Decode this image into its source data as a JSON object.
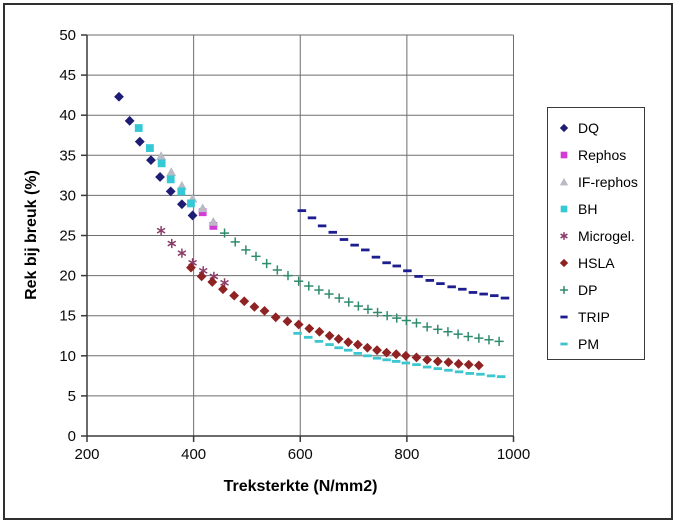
{
  "chart_data": {
    "type": "scatter",
    "title": "",
    "xlabel": "Treksterkte (N/mm2)",
    "ylabel": "Rek bij breuk (%)",
    "xlim": [
      200,
      1000
    ],
    "ylim": [
      0,
      50
    ],
    "x_ticks": [
      200,
      400,
      600,
      800,
      1000
    ],
    "y_ticks": [
      0,
      5,
      10,
      15,
      20,
      25,
      30,
      35,
      40,
      45,
      50
    ],
    "grid": true,
    "grid_color": "#6e6e6e",
    "axis_color": "#3a3a3a",
    "legend_position": "right",
    "series": [
      {
        "name": "DQ",
        "marker": "diamond",
        "color": "#1d1d74",
        "points": [
          [
            260,
            42.3
          ],
          [
            280,
            39.3
          ],
          [
            299,
            36.7
          ],
          [
            320,
            34.4
          ],
          [
            337,
            32.3
          ],
          [
            357,
            30.5
          ],
          [
            378,
            28.9
          ],
          [
            398,
            27.5
          ]
        ]
      },
      {
        "name": "Rephos",
        "marker": "square",
        "color": "#d43bd4",
        "points": [
          [
            417,
            27.9
          ],
          [
            437,
            26.2
          ]
        ]
      },
      {
        "name": "IF-rephos",
        "marker": "triangle",
        "color": "#b9bac4",
        "points": [
          [
            339,
            34.9
          ],
          [
            358,
            32.9
          ],
          [
            378,
            31.2
          ],
          [
            398,
            29.6
          ],
          [
            417,
            28.4
          ],
          [
            437,
            26.7
          ]
        ]
      },
      {
        "name": "BH",
        "marker": "square",
        "color": "#35c9d6",
        "points": [
          [
            297,
            38.4
          ],
          [
            318,
            35.9
          ],
          [
            340,
            34.0
          ],
          [
            357,
            32.0
          ],
          [
            377,
            30.5
          ],
          [
            395,
            29.0
          ]
        ]
      },
      {
        "name": "Microgel.",
        "marker": "asterisk",
        "color": "#8a3d68",
        "points": [
          [
            339,
            25.6
          ],
          [
            359,
            24.0
          ],
          [
            378,
            22.8
          ],
          [
            398,
            21.6
          ],
          [
            418,
            20.6
          ],
          [
            438,
            19.9
          ],
          [
            458,
            19.1
          ]
        ]
      },
      {
        "name": "HSLA",
        "marker": "diamond",
        "color": "#8f2222",
        "points": [
          [
            395,
            21.0
          ],
          [
            415,
            19.9
          ],
          [
            435,
            19.2
          ],
          [
            455,
            18.3
          ],
          [
            476,
            17.5
          ],
          [
            495,
            16.8
          ],
          [
            514,
            16.1
          ],
          [
            533,
            15.6
          ],
          [
            554,
            14.8
          ],
          [
            576,
            14.3
          ],
          [
            597,
            13.9
          ],
          [
            617,
            13.4
          ],
          [
            636,
            13.0
          ],
          [
            655,
            12.5
          ],
          [
            672,
            12.1
          ],
          [
            690,
            11.7
          ],
          [
            708,
            11.4
          ],
          [
            726,
            11.0
          ],
          [
            744,
            10.7
          ],
          [
            762,
            10.4
          ],
          [
            780,
            10.2
          ],
          [
            798,
            10.0
          ],
          [
            818,
            9.8
          ],
          [
            838,
            9.5
          ],
          [
            858,
            9.3
          ],
          [
            878,
            9.2
          ],
          [
            897,
            9.0
          ],
          [
            916,
            8.9
          ],
          [
            935,
            8.8
          ]
        ]
      },
      {
        "name": "DP",
        "marker": "plus",
        "color": "#2e8b6e",
        "points": [
          [
            458,
            25.3
          ],
          [
            478,
            24.2
          ],
          [
            498,
            23.2
          ],
          [
            517,
            22.4
          ],
          [
            537,
            21.5
          ],
          [
            557,
            20.7
          ],
          [
            577,
            20.0
          ],
          [
            597,
            19.3
          ],
          [
            616,
            18.7
          ],
          [
            635,
            18.2
          ],
          [
            654,
            17.7
          ],
          [
            673,
            17.2
          ],
          [
            691,
            16.7
          ],
          [
            709,
            16.2
          ],
          [
            727,
            15.8
          ],
          [
            745,
            15.4
          ],
          [
            763,
            15.0
          ],
          [
            781,
            14.7
          ],
          [
            799,
            14.4
          ],
          [
            818,
            14.1
          ],
          [
            838,
            13.6
          ],
          [
            858,
            13.3
          ],
          [
            877,
            13.0
          ],
          [
            896,
            12.7
          ],
          [
            915,
            12.4
          ],
          [
            935,
            12.2
          ],
          [
            954,
            12.0
          ],
          [
            973,
            11.8
          ]
        ]
      },
      {
        "name": "TRIP",
        "marker": "dash",
        "color": "#1d1d8f",
        "points": [
          [
            603,
            28.1
          ],
          [
            622,
            27.2
          ],
          [
            641,
            26.2
          ],
          [
            661,
            25.4
          ],
          [
            682,
            24.5
          ],
          [
            702,
            23.8
          ],
          [
            722,
            23.2
          ],
          [
            742,
            22.3
          ],
          [
            762,
            21.6
          ],
          [
            781,
            21.2
          ],
          [
            801,
            20.6
          ],
          [
            822,
            19.9
          ],
          [
            843,
            19.4
          ],
          [
            863,
            19.0
          ],
          [
            884,
            18.6
          ],
          [
            904,
            18.3
          ],
          [
            924,
            17.9
          ],
          [
            944,
            17.7
          ],
          [
            964,
            17.5
          ],
          [
            984,
            17.2
          ]
        ]
      },
      {
        "name": "PM",
        "marker": "dash",
        "color": "#3cc6cf",
        "points": [
          [
            595,
            12.8
          ],
          [
            615,
            12.3
          ],
          [
            635,
            11.8
          ],
          [
            655,
            11.4
          ],
          [
            672,
            11.0
          ],
          [
            690,
            10.7
          ],
          [
            708,
            10.3
          ],
          [
            726,
            10.0
          ],
          [
            744,
            9.7
          ],
          [
            762,
            9.5
          ],
          [
            780,
            9.3
          ],
          [
            798,
            9.1
          ],
          [
            818,
            8.9
          ],
          [
            838,
            8.6
          ],
          [
            858,
            8.4
          ],
          [
            878,
            8.2
          ],
          [
            898,
            8.0
          ],
          [
            918,
            7.8
          ],
          [
            938,
            7.7
          ],
          [
            958,
            7.5
          ],
          [
            977,
            7.4
          ]
        ]
      }
    ]
  }
}
